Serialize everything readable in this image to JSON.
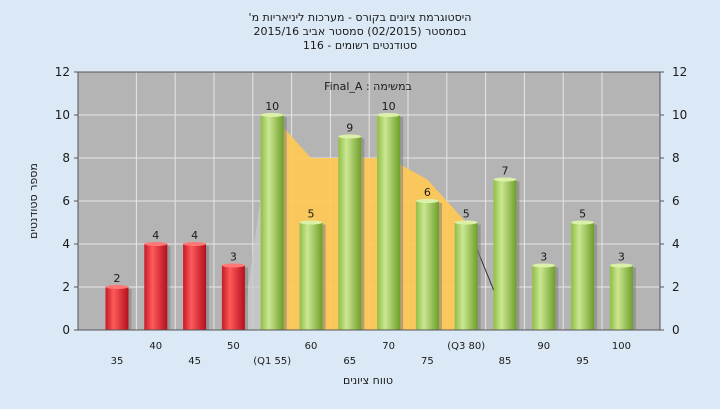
{
  "chart_data": {
    "type": "bar",
    "title": {
      "line1": "היסטוגרמת ציונים בקורס - מערכות ליניאריות מ'",
      "line2": "בסמסטר (02/2015) סמסטר אביב 2015/16",
      "line3": "סטודנטים רשומים - 116"
    },
    "inner_label": "במשימה : Final_A",
    "ylabel": "מספר סטודנטים",
    "xlabel": "טווח ציונים",
    "ylim": [
      0,
      12
    ],
    "yticks": [
      0,
      2,
      4,
      6,
      8,
      10,
      12
    ],
    "grid": true,
    "categories": [
      "35",
      "40",
      "45",
      "50",
      "(Q1 55)",
      "60",
      "65",
      "70",
      "75",
      "(Q3 80)",
      "85",
      "90",
      "95",
      "100"
    ],
    "values": [
      2,
      4,
      4,
      3,
      10,
      5,
      9,
      10,
      6,
      5,
      7,
      3,
      5,
      3
    ],
    "bar_colors": [
      "red",
      "red",
      "red",
      "red",
      "green",
      "green",
      "green",
      "green",
      "green",
      "green",
      "green",
      "green",
      "green",
      "green"
    ],
    "interquartile_area": {
      "x": [
        "(Q1 55)",
        "60",
        "65",
        "70",
        "75",
        "(Q3 80)"
      ],
      "y": [
        10,
        8,
        8,
        8,
        7,
        5
      ]
    },
    "median_marker": {
      "from_x": "(Q3 80)",
      "from_y": 5,
      "to_x": "85",
      "to_y": 1.7
    },
    "colors": {
      "background": "#dbe9f6",
      "plot_bg": "#b4b4b4",
      "grid": "#e6e6e6",
      "red_bar_light": "#ff5a5a",
      "red_bar_dark": "#b40f1e",
      "green_bar_light": "#cbe792",
      "green_bar_dark": "#6e9e2a",
      "iqr_fill": "#ffc955",
      "text": "#1a1a1a"
    }
  }
}
